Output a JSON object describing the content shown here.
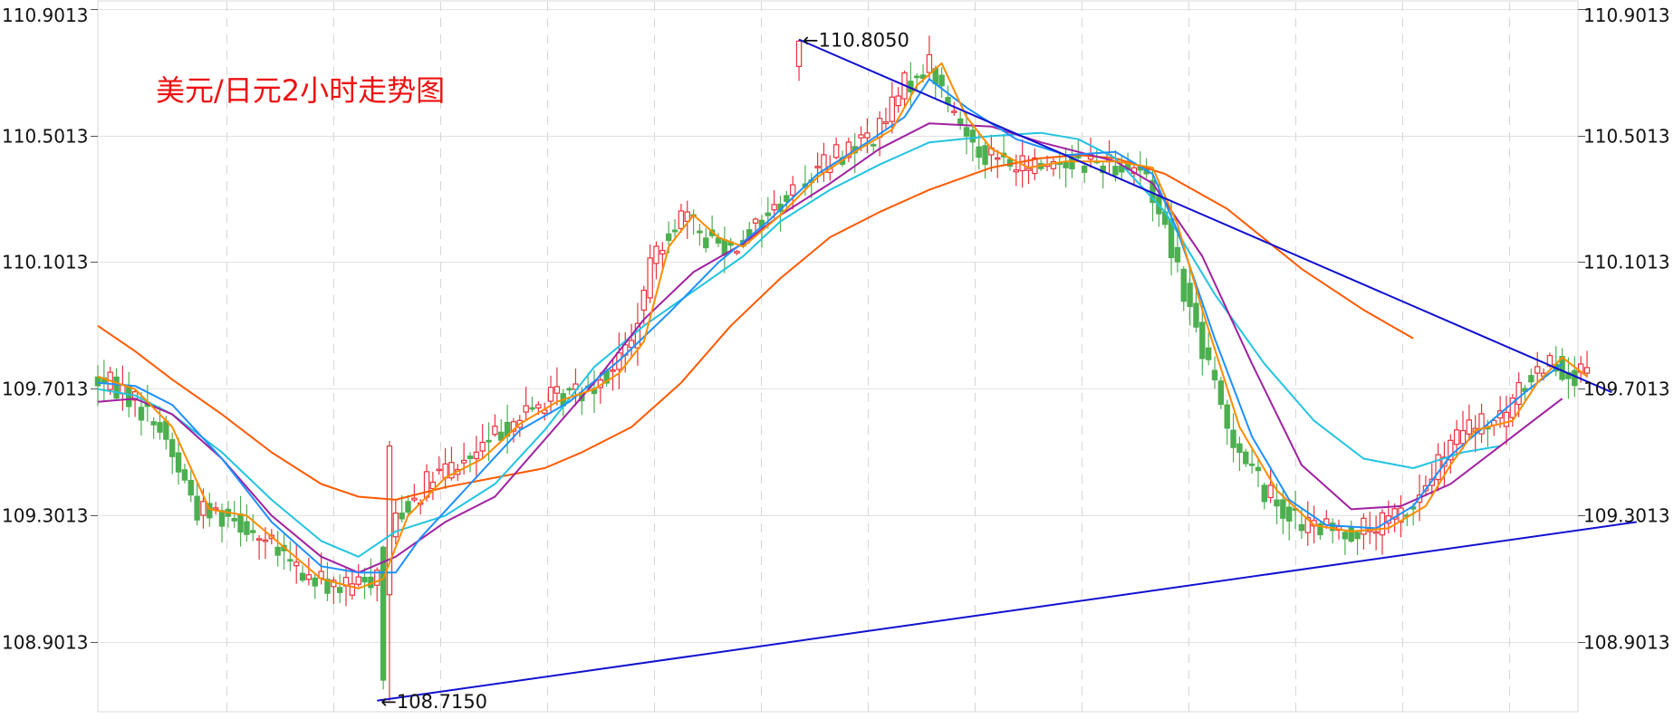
{
  "chart_data": {
    "type": "candlestick",
    "title": "美元/日元2小时走势图",
    "xlabel": "",
    "ylabel": "",
    "ylim": [
      108.68,
      110.93
    ],
    "grid": true,
    "legend": "none",
    "y_ticks": [
      {
        "value": 110.9013,
        "label": "110.9013"
      },
      {
        "value": 110.5013,
        "label": "110.5013"
      },
      {
        "value": 110.1013,
        "label": "110.1013"
      },
      {
        "value": 109.7013,
        "label": "109.7013"
      },
      {
        "value": 109.3013,
        "label": "109.3013"
      },
      {
        "value": 108.9013,
        "label": "108.9013"
      }
    ],
    "annotations": [
      {
        "text": "←110.8050",
        "x": 113,
        "y": 110.805
      },
      {
        "text": "←108.7150",
        "x": 45,
        "y": 108.715
      }
    ],
    "colors": {
      "up": "#e8323c",
      "down": "#4caf50",
      "ma_fast": "#ff8c00",
      "ma_blue": "#1e90ff",
      "ma_purple": "#a020a0",
      "ma_cyan": "#22c4e0",
      "ma_slow": "#ff5a00",
      "trendline": "#1010d0",
      "title": "#ee1111"
    },
    "series": [
      {
        "key": "ma_slow",
        "points": [
          [
            0,
            109.9
          ],
          [
            6,
            109.82
          ],
          [
            12,
            109.73
          ],
          [
            20,
            109.62
          ],
          [
            28,
            109.5
          ],
          [
            36,
            109.4
          ],
          [
            42,
            109.36
          ],
          [
            48,
            109.35
          ],
          [
            56,
            109.39
          ],
          [
            64,
            109.42
          ],
          [
            72,
            109.45
          ],
          [
            78,
            109.5
          ],
          [
            86,
            109.58
          ],
          [
            94,
            109.72
          ],
          [
            102,
            109.9
          ],
          [
            110,
            110.05
          ],
          [
            118,
            110.18
          ],
          [
            126,
            110.26
          ],
          [
            134,
            110.33
          ],
          [
            144,
            110.4
          ],
          [
            152,
            110.43
          ],
          [
            158,
            110.44
          ],
          [
            164,
            110.43
          ],
          [
            172,
            110.38
          ],
          [
            182,
            110.27
          ],
          [
            194,
            110.08
          ],
          [
            204,
            109.95
          ],
          [
            212,
            109.86
          ]
        ]
      },
      {
        "key": "ma_cyan",
        "points": [
          [
            0,
            109.7
          ],
          [
            6,
            109.68
          ],
          [
            12,
            109.62
          ],
          [
            20,
            109.5
          ],
          [
            28,
            109.35
          ],
          [
            36,
            109.22
          ],
          [
            42,
            109.17
          ],
          [
            48,
            109.25
          ],
          [
            56,
            109.3
          ],
          [
            64,
            109.4
          ],
          [
            72,
            109.57
          ],
          [
            80,
            109.77
          ],
          [
            88,
            109.9
          ],
          [
            96,
            110.01
          ],
          [
            104,
            110.12
          ],
          [
            110,
            110.23
          ],
          [
            118,
            110.33
          ],
          [
            126,
            110.41
          ],
          [
            134,
            110.48
          ],
          [
            144,
            110.5
          ],
          [
            152,
            110.51
          ],
          [
            158,
            110.49
          ],
          [
            164,
            110.43
          ],
          [
            172,
            110.26
          ],
          [
            180,
            110.0
          ],
          [
            188,
            109.78
          ],
          [
            196,
            109.6
          ],
          [
            204,
            109.48
          ],
          [
            212,
            109.45
          ],
          [
            220,
            109.5
          ],
          [
            226,
            109.52
          ]
        ]
      },
      {
        "key": "ma_purple",
        "points": [
          [
            0,
            109.66
          ],
          [
            6,
            109.67
          ],
          [
            12,
            109.62
          ],
          [
            20,
            109.48
          ],
          [
            28,
            109.3
          ],
          [
            36,
            109.17
          ],
          [
            42,
            109.12
          ],
          [
            48,
            109.17
          ],
          [
            56,
            109.28
          ],
          [
            64,
            109.36
          ],
          [
            72,
            109.54
          ],
          [
            80,
            109.72
          ],
          [
            88,
            109.92
          ],
          [
            96,
            110.07
          ],
          [
            104,
            110.16
          ],
          [
            110,
            110.25
          ],
          [
            118,
            110.35
          ],
          [
            126,
            110.46
          ],
          [
            134,
            110.54
          ],
          [
            144,
            110.53
          ],
          [
            152,
            110.48
          ],
          [
            158,
            110.45
          ],
          [
            164,
            110.42
          ],
          [
            170,
            110.35
          ],
          [
            178,
            110.12
          ],
          [
            186,
            109.78
          ],
          [
            194,
            109.46
          ],
          [
            202,
            109.32
          ],
          [
            210,
            109.33
          ],
          [
            218,
            109.4
          ],
          [
            226,
            109.52
          ],
          [
            232,
            109.61
          ],
          [
            236,
            109.67
          ]
        ]
      },
      {
        "key": "ma_blue",
        "points": [
          [
            0,
            109.72
          ],
          [
            6,
            109.71
          ],
          [
            12,
            109.65
          ],
          [
            20,
            109.48
          ],
          [
            28,
            109.28
          ],
          [
            36,
            109.14
          ],
          [
            42,
            109.12
          ],
          [
            48,
            109.12
          ],
          [
            52,
            109.23
          ],
          [
            60,
            109.4
          ],
          [
            68,
            109.57
          ],
          [
            76,
            109.66
          ],
          [
            84,
            109.79
          ],
          [
            92,
            109.94
          ],
          [
            100,
            110.1
          ],
          [
            108,
            110.23
          ],
          [
            116,
            110.38
          ],
          [
            124,
            110.48
          ],
          [
            130,
            110.56
          ],
          [
            134,
            110.68
          ],
          [
            140,
            110.59
          ],
          [
            148,
            110.49
          ],
          [
            156,
            110.44
          ],
          [
            164,
            110.45
          ],
          [
            170,
            110.38
          ],
          [
            174,
            110.2
          ],
          [
            180,
            109.86
          ],
          [
            186,
            109.55
          ],
          [
            192,
            109.35
          ],
          [
            198,
            109.27
          ],
          [
            206,
            109.26
          ],
          [
            212,
            109.33
          ],
          [
            218,
            109.49
          ],
          [
            224,
            109.59
          ],
          [
            230,
            109.69
          ],
          [
            236,
            109.78
          ]
        ]
      },
      {
        "key": "ma_fast",
        "points": [
          [
            0,
            109.74
          ],
          [
            6,
            109.7
          ],
          [
            12,
            109.58
          ],
          [
            18,
            109.32
          ],
          [
            24,
            109.3
          ],
          [
            30,
            109.2
          ],
          [
            36,
            109.1
          ],
          [
            42,
            109.07
          ],
          [
            46,
            109.1
          ],
          [
            50,
            109.3
          ],
          [
            56,
            109.42
          ],
          [
            62,
            109.48
          ],
          [
            68,
            109.59
          ],
          [
            74,
            109.66
          ],
          [
            80,
            109.7
          ],
          [
            84,
            109.75
          ],
          [
            88,
            109.85
          ],
          [
            92,
            110.15
          ],
          [
            96,
            110.25
          ],
          [
            100,
            110.18
          ],
          [
            104,
            110.15
          ],
          [
            110,
            110.25
          ],
          [
            116,
            110.37
          ],
          [
            122,
            110.45
          ],
          [
            128,
            110.52
          ],
          [
            132,
            110.66
          ],
          [
            136,
            110.73
          ],
          [
            140,
            110.56
          ],
          [
            144,
            110.46
          ],
          [
            150,
            110.4
          ],
          [
            156,
            110.42
          ],
          [
            164,
            110.42
          ],
          [
            170,
            110.4
          ],
          [
            174,
            110.22
          ],
          [
            178,
            109.95
          ],
          [
            184,
            109.58
          ],
          [
            190,
            109.38
          ],
          [
            196,
            109.27
          ],
          [
            202,
            109.25
          ],
          [
            208,
            109.26
          ],
          [
            214,
            109.33
          ],
          [
            218,
            109.46
          ],
          [
            222,
            109.57
          ],
          [
            228,
            109.6
          ],
          [
            232,
            109.72
          ],
          [
            236,
            109.8
          ],
          [
            240,
            109.74
          ]
        ]
      }
    ],
    "trendlines": [
      {
        "name": "upper",
        "points": [
          [
            113,
            110.805
          ],
          [
            244,
            109.69
          ]
        ]
      },
      {
        "name": "lower",
        "points": [
          [
            45,
            108.715
          ],
          [
            248,
            109.28
          ]
        ]
      }
    ]
  }
}
